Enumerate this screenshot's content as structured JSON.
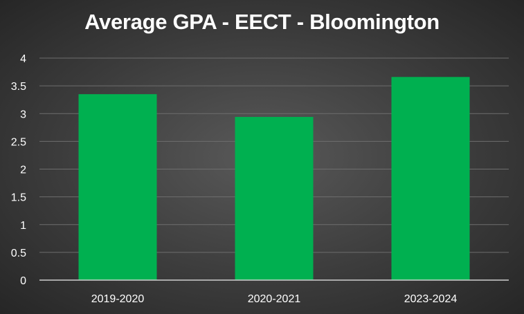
{
  "chart_data": {
    "type": "bar",
    "title": "Average GPA - EECT - Bloomington",
    "categories": [
      "2019-2020",
      "2020-2021",
      "2023-2024"
    ],
    "values": [
      3.35,
      2.94,
      3.66
    ],
    "ylim": [
      0,
      4
    ],
    "yticks": [
      0,
      0.5,
      1,
      1.5,
      2,
      2.5,
      3,
      3.5,
      4
    ],
    "ytick_labels": [
      "0",
      "0.5",
      "1",
      "1.5",
      "2",
      "2.5",
      "3",
      "3.5",
      "4"
    ],
    "grid": true,
    "legend": "none",
    "bar_color": "#00b050",
    "grid_color": "#6e6e6e",
    "axis_color": "#d0d0d0"
  }
}
